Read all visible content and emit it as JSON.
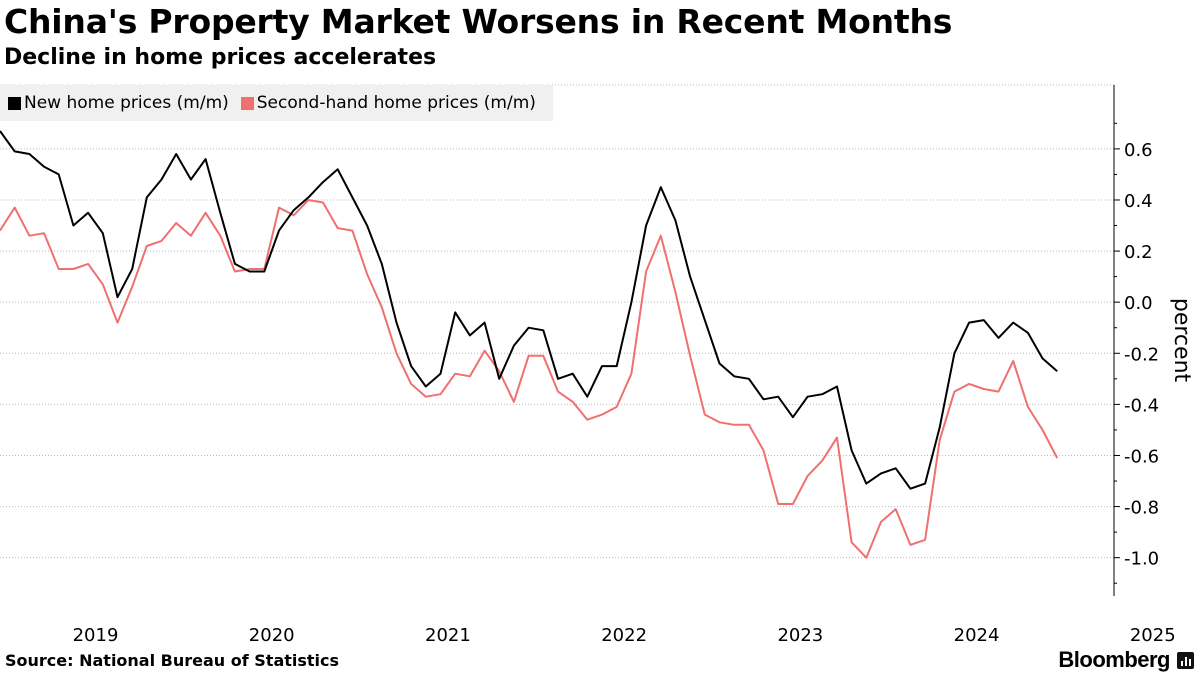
{
  "chart_data": {
    "type": "line",
    "title": "China's Property Market Worsens in Recent Months",
    "subtitle": "Decline in home prices accelerates",
    "ylabel": "percent",
    "xlabel": "",
    "ylim": [
      -1.15,
      0.85
    ],
    "yticks": [
      0.6,
      0.4,
      0.2,
      0.0,
      -0.2,
      -0.4,
      -0.6,
      -0.8,
      -1.0
    ],
    "ytick_labels": [
      "0.6",
      "0.4",
      "0.2",
      "0.0",
      "-0.2",
      "-0.4",
      "-0.6",
      "-0.8",
      "-1.0"
    ],
    "x_start": 2018.958,
    "x_step": 0.08333,
    "xlim": [
      2018.958,
      2025.28
    ],
    "xticks": [
      2019,
      2020,
      2021,
      2022,
      2023,
      2024,
      2025
    ],
    "xtick_labels": [
      "2019",
      "2020",
      "2021",
      "2022",
      "2023",
      "2024",
      "2025"
    ],
    "grid": true,
    "legend_position": "top-left",
    "series": [
      {
        "name": "New home prices (m/m)",
        "color": "#000000",
        "values": [
          0.67,
          0.59,
          0.58,
          0.53,
          0.5,
          0.3,
          0.35,
          0.27,
          0.02,
          0.13,
          0.41,
          0.48,
          0.58,
          0.48,
          0.56,
          0.35,
          0.15,
          0.12,
          0.12,
          0.28,
          0.36,
          0.41,
          0.47,
          0.52,
          0.41,
          0.3,
          0.15,
          -0.08,
          -0.25,
          -0.33,
          -0.28,
          -0.04,
          -0.13,
          -0.08,
          -0.3,
          -0.17,
          -0.1,
          -0.11,
          -0.3,
          -0.28,
          -0.37,
          -0.25,
          -0.25,
          0.0,
          0.3,
          0.45,
          0.32,
          0.1,
          -0.07,
          -0.24,
          -0.29,
          -0.3,
          -0.38,
          -0.37,
          -0.45,
          -0.37,
          -0.36,
          -0.33,
          -0.58,
          -0.71,
          -0.67,
          -0.65,
          -0.73,
          -0.71,
          -0.49,
          -0.2,
          -0.08,
          -0.07,
          -0.14,
          -0.08,
          -0.12,
          -0.22,
          -0.27
        ]
      },
      {
        "name": "Second-hand home prices (m/m)",
        "color": "#f07070",
        "values": [
          0.28,
          0.37,
          0.26,
          0.27,
          0.13,
          0.13,
          0.15,
          0.07,
          -0.08,
          0.06,
          0.22,
          0.24,
          0.31,
          0.26,
          0.35,
          0.26,
          0.12,
          0.13,
          0.13,
          0.37,
          0.34,
          0.4,
          0.39,
          0.29,
          0.28,
          0.11,
          -0.02,
          -0.2,
          -0.32,
          -0.37,
          -0.36,
          -0.28,
          -0.29,
          -0.19,
          -0.27,
          -0.39,
          -0.21,
          -0.21,
          -0.35,
          -0.39,
          -0.46,
          -0.44,
          -0.41,
          -0.28,
          0.12,
          0.26,
          0.04,
          -0.21,
          -0.44,
          -0.47,
          -0.48,
          -0.48,
          -0.58,
          -0.79,
          -0.79,
          -0.68,
          -0.62,
          -0.53,
          -0.94,
          -1.0,
          -0.86,
          -0.81,
          -0.95,
          -0.93,
          -0.54,
          -0.35,
          -0.32,
          -0.34,
          -0.35,
          -0.23,
          -0.41,
          -0.5,
          -0.61
        ]
      }
    ]
  },
  "source": "Source: National Bureau of Statistics",
  "brand": "Bloomberg"
}
